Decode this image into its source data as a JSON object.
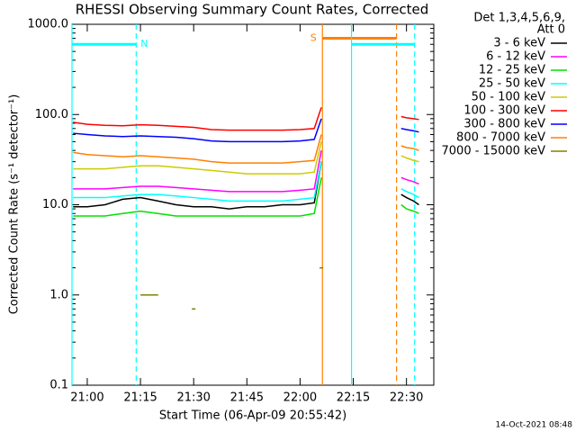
{
  "chart_data": {
    "type": "line",
    "title": "RHESSI Observing Summary Count Rates, Corrected",
    "legend_title": [
      "Det 1,3,4,5,6,9,",
      "Att 0"
    ],
    "y_label": "Corrected Count Rate (s⁻¹ detector⁻¹)",
    "x_label": "Start Time (06-Apr-09 20:55:42)",
    "footer": "14-Oct-2021 08:48",
    "log_y": true,
    "xlim": [
      1255.7,
      1357.7
    ],
    "xticks": [
      {
        "value": 1260,
        "label": "21:00"
      },
      {
        "value": 1275,
        "label": "21:15"
      },
      {
        "value": 1290,
        "label": "21:30"
      },
      {
        "value": 1305,
        "label": "21:45"
      },
      {
        "value": 1320,
        "label": "22:00"
      },
      {
        "value": 1335,
        "label": "22:15"
      },
      {
        "value": 1350,
        "label": "22:30"
      }
    ],
    "ylim": [
      0.1,
      1000
    ],
    "yticks": [
      {
        "value": 0.1,
        "label": "0.1"
      },
      {
        "value": 1,
        "label": "1.0"
      },
      {
        "value": 10,
        "label": "10.0"
      },
      {
        "value": 100,
        "label": "100.0"
      },
      {
        "value": 1000,
        "label": "1000.0"
      }
    ],
    "x": [
      1256,
      1260,
      1265,
      1270,
      1275,
      1280,
      1285,
      1290,
      1295,
      1300,
      1305,
      1310,
      1315,
      1320,
      1324,
      1326,
      1327,
      1348.5,
      1350,
      1352,
      1353.5
    ],
    "series": [
      {
        "name": "3 - 6 keV",
        "color": "#000000",
        "values": [
          9.5,
          9.5,
          10,
          11.5,
          12,
          11,
          10,
          9.5,
          9.5,
          9,
          9.5,
          9.5,
          10,
          10,
          10.5,
          30,
          null,
          13,
          12,
          11,
          10
        ]
      },
      {
        "name": "6 - 12 keV",
        "color": "#ff00ff",
        "values": [
          15,
          15,
          15,
          15.5,
          16,
          16,
          15.5,
          15,
          14.5,
          14,
          14,
          14,
          14,
          14.5,
          15,
          40,
          null,
          20,
          19,
          18,
          17
        ]
      },
      {
        "name": "12 - 25 keV",
        "color": "#00e000",
        "values": [
          7.5,
          7.5,
          7.5,
          8,
          8.5,
          8,
          7.5,
          7.5,
          7.5,
          7.5,
          7.5,
          7.5,
          7.5,
          7.5,
          8,
          20,
          null,
          10,
          9,
          8.5,
          8
        ]
      },
      {
        "name": "25 - 50 keV",
        "color": "#00ffff",
        "values": [
          12,
          12,
          12,
          12.5,
          13,
          13,
          12.5,
          12,
          11.5,
          11,
          11,
          11,
          11,
          11.5,
          12,
          30,
          null,
          15,
          14,
          13,
          12
        ]
      },
      {
        "name": "50 - 100 keV",
        "color": "#cccc00",
        "values": [
          25,
          25,
          25,
          26,
          27,
          27,
          26,
          25,
          24,
          23,
          22,
          22,
          22,
          22,
          23,
          50,
          null,
          35,
          33,
          31,
          30
        ]
      },
      {
        "name": "100 - 300 keV",
        "color": "#ff0000",
        "values": [
          82,
          78,
          76,
          75,
          77,
          76,
          74,
          72,
          68,
          67,
          67,
          67,
          67,
          68,
          70,
          120,
          null,
          95,
          92,
          90,
          88
        ]
      },
      {
        "name": "300 - 800 keV",
        "color": "#0000ff",
        "values": [
          62,
          60,
          58,
          57,
          58,
          57,
          56,
          54,
          51,
          50,
          50,
          50,
          50,
          51,
          53,
          90,
          null,
          70,
          68,
          66,
          64
        ]
      },
      {
        "name": "800 - 7000 keV",
        "color": "#ff8000",
        "values": [
          38,
          36,
          35,
          34,
          35,
          34,
          33,
          32,
          30,
          29,
          29,
          29,
          29,
          30,
          31,
          60,
          null,
          45,
          43,
          42,
          40
        ]
      },
      {
        "name": "7000 - 15000 keV",
        "color": "#808000",
        "values": [
          null,
          null,
          null,
          null,
          1,
          1,
          null,
          0.7,
          null,
          null,
          null,
          null,
          null,
          null,
          null,
          2,
          null,
          null,
          null,
          null,
          null
        ]
      }
    ],
    "intervals": [
      {
        "label": "N",
        "color": "#00ffff",
        "start": 1255.7,
        "end": 1273.8,
        "level": 600
      },
      {
        "label": "S",
        "color": "#ff8000",
        "start": 1326.3,
        "end": 1347.2,
        "level": 700
      },
      {
        "label": null,
        "color": "#00ffff",
        "start": 1334.5,
        "end": 1352.3,
        "level": 600
      }
    ]
  }
}
